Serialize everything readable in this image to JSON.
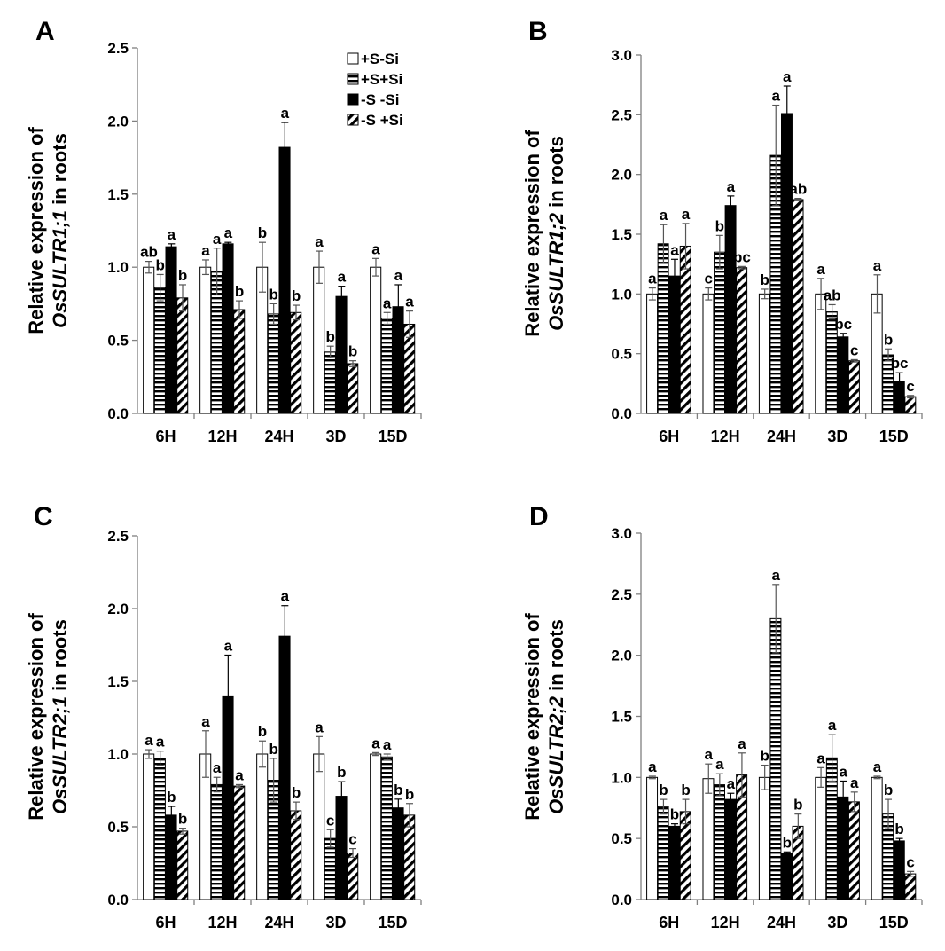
{
  "chart_data": [
    {
      "type": "bar",
      "panel": "A",
      "ylabel_pre": "Relative expression of",
      "ylabel_gene": "OsSULTR1;1",
      "ylabel_post": " in roots",
      "ylim": [
        0,
        2.5
      ],
      "yticks": [
        "0.0",
        "0.5",
        "1.0",
        "1.5",
        "2.0",
        "2.5"
      ],
      "categories": [
        "6H",
        "12H",
        "24H",
        "3D",
        "15D"
      ],
      "legend": [
        "+S-Si",
        "+S+Si",
        "-S -Si",
        "-S +Si"
      ],
      "series": [
        {
          "name": "+S-Si",
          "values": [
            1.0,
            1.0,
            1.0,
            1.0,
            1.0
          ],
          "errors": [
            0.04,
            0.05,
            0.17,
            0.11,
            0.06
          ],
          "labels": [
            "ab",
            "a",
            "b",
            "a",
            "a"
          ]
        },
        {
          "name": "+S+Si",
          "values": [
            0.86,
            0.97,
            0.68,
            0.42,
            0.65
          ],
          "errors": [
            0.09,
            0.16,
            0.07,
            0.04,
            0.04
          ],
          "labels": [
            "b",
            "a",
            "b",
            "b",
            "a"
          ]
        },
        {
          "name": "-S -Si",
          "values": [
            1.14,
            1.16,
            1.82,
            0.8,
            0.73
          ],
          "errors": [
            0.02,
            0.01,
            0.17,
            0.07,
            0.15
          ],
          "labels": [
            "a",
            "a",
            "a",
            "a",
            "a"
          ]
        },
        {
          "name": "-S +Si",
          "values": [
            0.79,
            0.71,
            0.69,
            0.34,
            0.61
          ],
          "errors": [
            0.09,
            0.06,
            0.05,
            0.02,
            0.09
          ],
          "labels": [
            "b",
            "b",
            "b",
            "b",
            "a"
          ]
        }
      ]
    },
    {
      "type": "bar",
      "panel": "B",
      "ylabel_pre": "Relative expression of",
      "ylabel_gene": "OsSULTR1;2",
      "ylabel_post": " in roots",
      "ylim": [
        0,
        3.0
      ],
      "yticks": [
        "0.0",
        "0.5",
        "1.0",
        "1.5",
        "2.0",
        "2.5",
        "3.0"
      ],
      "categories": [
        "6H",
        "12H",
        "24H",
        "3D",
        "15D"
      ],
      "legend": [],
      "series": [
        {
          "name": "+S-Si",
          "values": [
            1.0,
            1.0,
            1.0,
            1.0,
            1.0
          ],
          "errors": [
            0.05,
            0.05,
            0.04,
            0.13,
            0.16
          ],
          "labels": [
            "a",
            "c",
            "b",
            "a",
            "a"
          ]
        },
        {
          "name": "+S+Si",
          "values": [
            1.42,
            1.35,
            2.16,
            0.85,
            0.49
          ],
          "errors": [
            0.16,
            0.14,
            0.42,
            0.06,
            0.05
          ],
          "labels": [
            "a",
            "b",
            "a",
            "ab",
            "b"
          ]
        },
        {
          "name": "-S -Si",
          "values": [
            1.15,
            1.74,
            2.51,
            0.64,
            0.27
          ],
          "errors": [
            0.14,
            0.08,
            0.23,
            0.03,
            0.07
          ],
          "labels": [
            "a",
            "a",
            "a",
            "bc",
            "bc"
          ]
        },
        {
          "name": "-S +Si",
          "values": [
            1.4,
            1.22,
            1.79,
            0.44,
            0.14
          ],
          "errors": [
            0.19,
            0.01,
            0.01,
            0.01,
            0.01
          ],
          "labels": [
            "a",
            "bc",
            "ab",
            "c",
            "c"
          ]
        }
      ]
    },
    {
      "type": "bar",
      "panel": "C",
      "ylabel_pre": "Relative expression of",
      "ylabel_gene": "OsSULTR2;1",
      "ylabel_post": " in roots",
      "ylim": [
        0,
        2.5
      ],
      "yticks": [
        "0.0",
        "0.5",
        "1.0",
        "1.5",
        "2.0",
        "2.5"
      ],
      "categories": [
        "6H",
        "12H",
        "24H",
        "3D",
        "15D"
      ],
      "legend": [],
      "series": [
        {
          "name": "+S-Si",
          "values": [
            1.0,
            1.0,
            1.0,
            1.0,
            1.0
          ],
          "errors": [
            0.03,
            0.16,
            0.09,
            0.12,
            0.01
          ],
          "labels": [
            "a",
            "a",
            "b",
            "a",
            "a"
          ]
        },
        {
          "name": "+S+Si",
          "values": [
            0.97,
            0.79,
            0.82,
            0.42,
            0.98
          ],
          "errors": [
            0.05,
            0.05,
            0.15,
            0.06,
            0.02
          ],
          "labels": [
            "a",
            "a",
            "b",
            "c",
            "a"
          ]
        },
        {
          "name": "-S -Si",
          "values": [
            0.58,
            1.4,
            1.81,
            0.71,
            0.63
          ],
          "errors": [
            0.06,
            0.28,
            0.21,
            0.1,
            0.06
          ],
          "labels": [
            "b",
            "a",
            "a",
            "b",
            "b"
          ]
        },
        {
          "name": "-S +Si",
          "values": [
            0.47,
            0.78,
            0.61,
            0.32,
            0.58
          ],
          "errors": [
            0.02,
            0.01,
            0.06,
            0.03,
            0.08
          ],
          "labels": [
            "b",
            "a",
            "b",
            "c",
            "b"
          ]
        }
      ]
    },
    {
      "type": "bar",
      "panel": "D",
      "ylabel_pre": "Relative expression of",
      "ylabel_gene": "OsSULTR2;2",
      "ylabel_post": " in roots",
      "ylim": [
        0,
        3.0
      ],
      "yticks": [
        "0.0",
        "0.5",
        "1.0",
        "1.5",
        "2.0",
        "2.5",
        "3.0"
      ],
      "categories": [
        "6H",
        "12H",
        "24H",
        "3D",
        "15D"
      ],
      "legend": [],
      "series": [
        {
          "name": "+S-Si",
          "values": [
            1.0,
            0.99,
            1.0,
            1.0,
            1.0
          ],
          "errors": [
            0.01,
            0.12,
            0.1,
            0.08,
            0.01
          ],
          "labels": [
            "a",
            "a",
            "b",
            "a",
            "a"
          ]
        },
        {
          "name": "+S+Si",
          "values": [
            0.76,
            0.94,
            2.3,
            1.16,
            0.7
          ],
          "errors": [
            0.06,
            0.09,
            0.28,
            0.19,
            0.12
          ],
          "labels": [
            "b",
            "a",
            "a",
            "a",
            "b"
          ]
        },
        {
          "name": "-S -Si",
          "values": [
            0.6,
            0.82,
            0.38,
            0.84,
            0.48
          ],
          "errors": [
            0.02,
            0.05,
            0.01,
            0.13,
            0.02
          ],
          "labels": [
            "b",
            "a",
            "b",
            "a",
            "b"
          ]
        },
        {
          "name": "-S +Si",
          "values": [
            0.72,
            1.02,
            0.6,
            0.8,
            0.21
          ],
          "errors": [
            0.1,
            0.18,
            0.1,
            0.08,
            0.02
          ],
          "labels": [
            "b",
            "a",
            "b",
            "a",
            "c"
          ]
        }
      ]
    }
  ]
}
